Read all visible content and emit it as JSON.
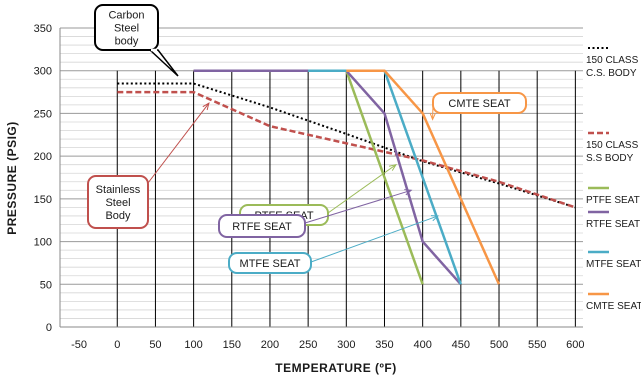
{
  "chart_data": {
    "type": "line",
    "xlabel": "TEMPERATURE (ºF)",
    "ylabel": "PRESSURE (PSIG)",
    "xlim": [
      -75,
      610
    ],
    "ylim": [
      0,
      350
    ],
    "xticks": [
      -50,
      0,
      50,
      100,
      150,
      200,
      250,
      300,
      350,
      400,
      450,
      500,
      550,
      600
    ],
    "yticks": [
      0,
      50,
      100,
      150,
      200,
      250,
      300,
      350
    ],
    "grid": true,
    "legend_position": "right",
    "series": [
      {
        "name": "150 CLASS C.S. BODY",
        "legend_lines": [
          "150 CLASS",
          "C.S. BODY"
        ],
        "color": "#000000",
        "style": "dotted",
        "x": [
          0,
          100,
          200,
          300,
          400,
          500,
          600
        ],
        "y": [
          285,
          285,
          257,
          226,
          194,
          168,
          140
        ]
      },
      {
        "name": "150 CLASS S.S BODY",
        "legend_lines": [
          "150 CLASS",
          "S.S BODY"
        ],
        "color": "#c0504d",
        "style": "dashed",
        "x": [
          0,
          100,
          200,
          300,
          400,
          500,
          600
        ],
        "y": [
          275,
          275,
          235,
          215,
          195,
          170,
          140
        ]
      },
      {
        "name": "PTFE SEAT",
        "legend_lines": [
          "PTFE SEAT"
        ],
        "color": "#9bbb59",
        "style": "solid",
        "x": [
          100,
          300,
          400
        ],
        "y": [
          300,
          300,
          50
        ]
      },
      {
        "name": "RTFE SEAT",
        "legend_lines": [
          "RTFE SEAT"
        ],
        "color": "#8064a2",
        "style": "solid",
        "x": [
          100,
          300,
          350,
          400,
          450
        ],
        "y": [
          300,
          300,
          250,
          100,
          50
        ]
      },
      {
        "name": "MTFE SEAT",
        "legend_lines": [
          "MTFE SEAT"
        ],
        "color": "#4bacc6",
        "style": "solid",
        "x": [
          250,
          300,
          350,
          450
        ],
        "y": [
          300,
          300,
          300,
          50
        ]
      },
      {
        "name": "CMTE SEAT",
        "legend_lines": [
          "CMTE SEAT"
        ],
        "color": "#f79646",
        "style": "solid",
        "x": [
          300,
          350,
          400,
          450,
          500
        ],
        "y": [
          300,
          300,
          250,
          150,
          50
        ]
      }
    ],
    "annotations": [
      {
        "lines": [
          "Carbon",
          "Steel",
          "body"
        ],
        "color": "#000000",
        "arrow_to": [
          90,
          285
        ]
      },
      {
        "lines": [
          "Stainless",
          "Steel",
          "Body"
        ],
        "color": "#c0504d",
        "arrow_to": [
          120,
          262
        ]
      },
      {
        "lines": [
          "PTFE SEAT"
        ],
        "color": "#9bbb59",
        "arrow_to": [
          365,
          190
        ]
      },
      {
        "lines": [
          "RTFE SEAT"
        ],
        "color": "#8064a2",
        "arrow_to": [
          385,
          160
        ]
      },
      {
        "lines": [
          "MTFE SEAT"
        ],
        "color": "#4bacc6",
        "arrow_to": [
          420,
          130
        ]
      },
      {
        "lines": [
          "CMTE SEAT"
        ],
        "color": "#f79646",
        "arrow_to": [
          413,
          243
        ]
      }
    ]
  }
}
